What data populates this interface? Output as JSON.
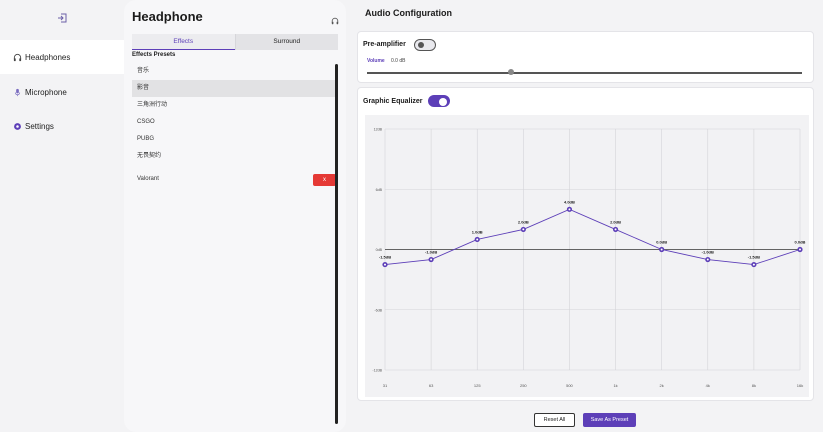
{
  "nav": {
    "items": [
      {
        "label": "Headphones",
        "icon": "headphones-icon"
      },
      {
        "label": "Microphone",
        "icon": "microphone-icon"
      },
      {
        "label": "Settings",
        "icon": "settings-icon"
      }
    ]
  },
  "presets": {
    "title": "Headphone",
    "tabs": [
      {
        "label": "Effects"
      },
      {
        "label": "Surround"
      }
    ],
    "list_title": "Effects Presets",
    "items": [
      {
        "label": "音乐"
      },
      {
        "label": "影音"
      },
      {
        "label": "三角洲行动"
      },
      {
        "label": "CSGO"
      },
      {
        "label": "PUBG"
      },
      {
        "label": "无畏契约"
      },
      {
        "label": "Valorant"
      }
    ],
    "delete_label": "x"
  },
  "main": {
    "title": "Audio Configuration",
    "preamp": {
      "label": "Pre-amplifier",
      "enabled": false,
      "volume_label": "Volume",
      "volume_value": "0.0 dB",
      "volume_fraction": 0.33
    },
    "eq": {
      "label": "Graphic Equalizer",
      "enabled": true
    }
  },
  "chart_data": {
    "type": "line",
    "x": [
      "31",
      "63",
      "125",
      "250",
      "500",
      "1k",
      "2k",
      "4k",
      "8k",
      "16k"
    ],
    "values": [
      -1.5,
      -1.0,
      1.0,
      2.0,
      4.0,
      2.0,
      0.0,
      -1.0,
      -1.5,
      0.0
    ],
    "point_labels": [
      "-1.5dB",
      "-1.0dB",
      "1.0dB",
      "2.0dB",
      "4.0dB",
      "2.0dB",
      "0.0dB",
      "-1.0dB",
      "-1.5dB",
      "0.0dB"
    ],
    "y_ticks": [
      12,
      6,
      0,
      -6,
      -12
    ],
    "y_tick_labels": [
      "12dB",
      "6dB",
      "0dB",
      "-6dB",
      "-12dB"
    ],
    "ylim": [
      -12,
      12
    ],
    "grid": true,
    "color": "#5d3fb8"
  },
  "actions": {
    "reset_label": "Reset All",
    "save_label": "Save As Preset"
  },
  "colors": {
    "accent": "#5d3fb8",
    "delete": "#e53935"
  }
}
